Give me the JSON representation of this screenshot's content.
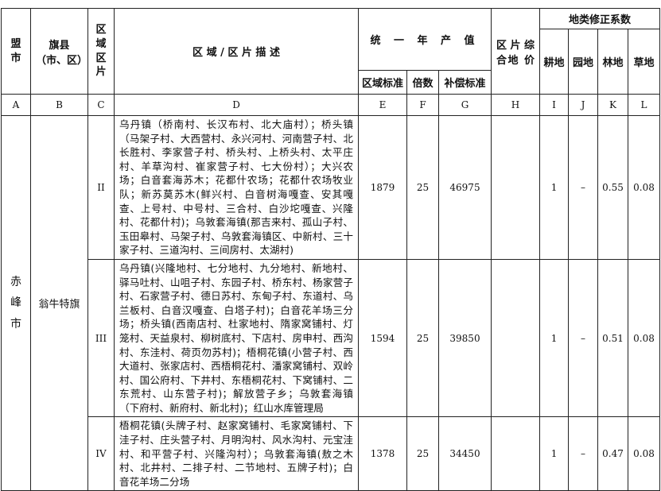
{
  "header": {
    "league_city": "盟市",
    "banner_county": "旗县（市、区）",
    "zone": "区域区片",
    "description": "区 域 / 区 片 描 述",
    "annual_output": "统 一 年 产 值",
    "zone_standard": "区域标准",
    "multiple": "倍数",
    "compensation_standard": "补偿标准",
    "composite_price": "区片综合地 价",
    "land_coef": "地类修正系数",
    "farmland": "耕地",
    "garden": "园地",
    "forest": "林地",
    "grass": "草地"
  },
  "letters": [
    "A",
    "B",
    "C",
    "D",
    "E",
    "F",
    "G",
    "H",
    "I",
    "J",
    "K",
    "L"
  ],
  "city": "赤峰市",
  "county": "翁牛特旗",
  "rows": [
    {
      "zone": "II",
      "description": "乌丹镇（桥南村、长汉布村、北大庙村）；桥头镇（马架子村、大西营村、永兴河村、河南营子村、北长胜村、李家营子村、桥头村、上桥头村、太平庄村、羊草沟村、崔家营子村、七大份村）；大兴农场；白音套海苏木；花都什农场；花都什农场牧业队；新苏莫苏木(鲜兴村、白音树海嘎查、安其嘎查、上号村、中号村、三合村、白沙坨嘎查、兴隆村、花都什村)；乌敦套海镇(那吉来村、孤山子村、玉田皋村、马架子村、乌敦套海镇区、中新村、三十家子村、三道沟村、三间房村、太湖村)",
      "zone_standard": "1879",
      "multiple": "25",
      "compensation": "46975",
      "composite": "",
      "farmland": "1",
      "garden": "–",
      "forest": "0.55",
      "grass": "0.08"
    },
    {
      "zone": "III",
      "description": "乌丹镇(兴隆地村、七分地村、九分地村、新地村、驿马吐村、山咀子村、东园子村、桥东村、杨家营子村、石家营子村、德日苏村、东甸子村、东道村、乌兰板村、白音汉嘎查、白塔子村)；白音花羊场三分场；桥头镇(西南店村、杜家地村、隋家窝铺村、灯笼村、天益泉村、柳树底村、下店村、房申村、西沟村、东洼村、荷页勿苏村)；梧桐花镇(小营子村、西大道村、张家店村、西梧桐花村、潘家窝铺村、双岭村、国公府村、下井村、东梧桐花村、下窝铺村、二东荒村、山东营子村)；解放营子乡；乌敦套海镇（下府村、新府村、新北村)；红山水库管理局",
      "zone_standard": "1594",
      "multiple": "25",
      "compensation": "39850",
      "composite": "",
      "farmland": "1",
      "garden": "–",
      "forest": "0.51",
      "grass": "0.08"
    },
    {
      "zone": "IV",
      "description": "梧桐花镇(头牌子村、赵家窝铺村、毛家窝铺村、下洼子村、庄头营子村、月明沟村、风水沟村、元宝洼村、和平营子村、兴隆沟村）；乌敦套海镇(敖之木村、北井村、二排子村、二节地村、五牌子村)；白音花羊场二分场",
      "zone_standard": "1378",
      "multiple": "25",
      "compensation": "34450",
      "composite": "",
      "farmland": "1",
      "garden": "–",
      "forest": "0.47",
      "grass": "0.08"
    }
  ]
}
